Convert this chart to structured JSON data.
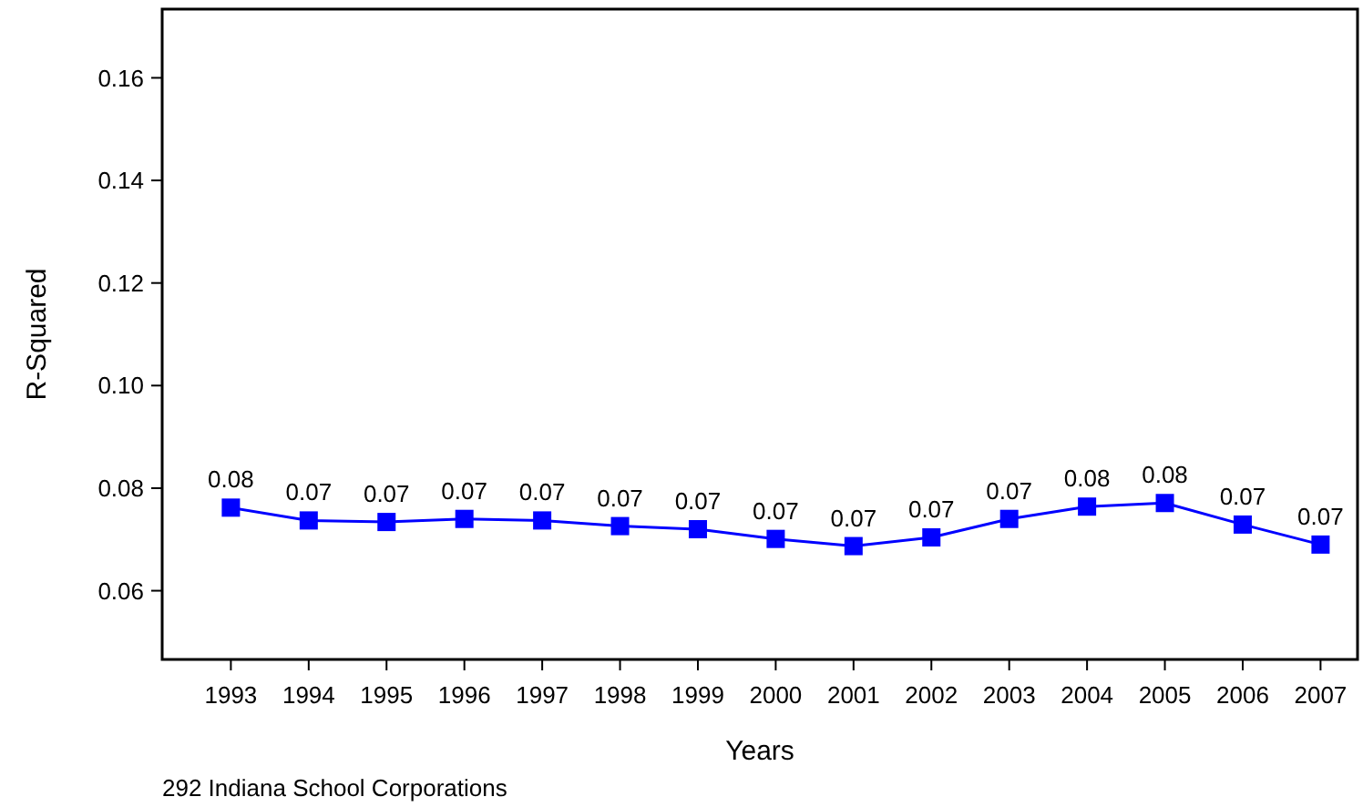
{
  "chart_data": {
    "type": "line",
    "xlabel": "Years",
    "ylabel": "R-Squared",
    "categories": [
      "1993",
      "1994",
      "1995",
      "1996",
      "1997",
      "1998",
      "1999",
      "2000",
      "2001",
      "2002",
      "2003",
      "2004",
      "2005",
      "2006",
      "2007"
    ],
    "series": [
      {
        "color": "#0000ff",
        "values": [
          0.0762,
          0.0737,
          0.0734,
          0.074,
          0.0737,
          0.0726,
          0.072,
          0.0701,
          0.0687,
          0.0704,
          0.074,
          0.0764,
          0.0771,
          0.0729,
          0.069
        ],
        "value_labels": [
          "0.08",
          "0.07",
          "0.07",
          "0.07",
          "0.07",
          "0.07",
          "0.07",
          "0.07",
          "0.07",
          "0.07",
          "0.07",
          "0.08",
          "0.08",
          "0.07",
          "0.07"
        ]
      }
    ],
    "ylim": [
      0.0466,
      0.1734
    ],
    "yticks": [
      0.06,
      0.08,
      {
        "value": 0.1,
        "label": "0.10"
      },
      0.12,
      0.14,
      0.16
    ],
    "marker": "square",
    "line_style": "solid",
    "grid": false,
    "annotations": [
      "292 Indiana School Corporations"
    ]
  }
}
